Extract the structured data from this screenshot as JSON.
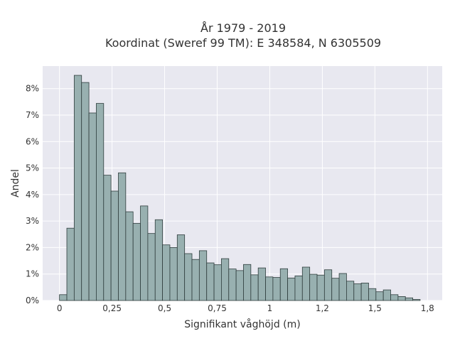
{
  "chart_data": {
    "type": "bar",
    "title_line1": "År 1979 - 2019",
    "title_line2": "Koordinat (Sweref 99 TM): E 348584, N 6305509",
    "xlabel": "Signifikant våghöjd (m)",
    "ylabel": "Andel",
    "xlim": [
      -0.08,
      1.82
    ],
    "ylim": [
      0,
      0.0885
    ],
    "grid": true,
    "x_ticks": [
      {
        "value": 0,
        "label": "0"
      },
      {
        "value": 0.25,
        "label": "0,25"
      },
      {
        "value": 0.5,
        "label": "0,5"
      },
      {
        "value": 0.75,
        "label": "0,75"
      },
      {
        "value": 1,
        "label": "1"
      },
      {
        "value": 1.25,
        "label": "1,2"
      },
      {
        "value": 1.5,
        "label": "1,5"
      },
      {
        "value": 1.75,
        "label": "1,8"
      }
    ],
    "y_ticks": [
      {
        "value": 0,
        "label": "0%"
      },
      {
        "value": 0.01,
        "label": "1%"
      },
      {
        "value": 0.02,
        "label": "2%"
      },
      {
        "value": 0.03,
        "label": "3%"
      },
      {
        "value": 0.04,
        "label": "4%"
      },
      {
        "value": 0.05,
        "label": "5%"
      },
      {
        "value": 0.06,
        "label": "6%"
      },
      {
        "value": 0.07,
        "label": "7%"
      },
      {
        "value": 0.08,
        "label": "8%"
      }
    ],
    "bin_start": 0.0,
    "bin_width": 0.035,
    "values": [
      0.0022,
      0.0273,
      0.085,
      0.0823,
      0.0708,
      0.0744,
      0.0473,
      0.0413,
      0.0482,
      0.0335,
      0.0291,
      0.0357,
      0.0253,
      0.0305,
      0.021,
      0.02,
      0.0248,
      0.0177,
      0.0155,
      0.0188,
      0.0142,
      0.0135,
      0.0158,
      0.0119,
      0.0113,
      0.0136,
      0.0097,
      0.0123,
      0.0089,
      0.0087,
      0.012,
      0.0085,
      0.0093,
      0.0126,
      0.0099,
      0.0096,
      0.0116,
      0.0084,
      0.0102,
      0.0073,
      0.0063,
      0.0066,
      0.0045,
      0.0033,
      0.004,
      0.0022,
      0.0015,
      0.001,
      0.0004
    ]
  },
  "colors": {
    "plot_bg": "#e8e8f0",
    "grid": "#ffffff",
    "bar_fill": "#98b0b0",
    "bar_stroke": "#2f3d3d",
    "text": "#333333",
    "page_bg": "#ffffff"
  }
}
